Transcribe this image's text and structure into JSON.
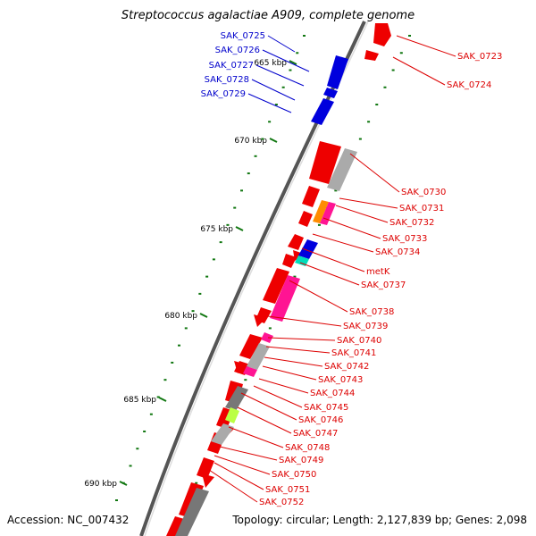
{
  "title": "Streptococcus agalactiae A909, complete genome",
  "footer": {
    "accession": "Accession: NC_007432",
    "summary": "Topology: circular; Length: 2,127,839 bp; Genes: 2,098"
  },
  "ticks": [
    "665 kbp",
    "670 kbp",
    "675 kbp",
    "680 kbp",
    "685 kbp",
    "690 kbp"
  ],
  "colors": {
    "backbone": "#555555",
    "forward_gene": "#0000dd",
    "reverse_gene": "#ee0000",
    "tick": "#117711",
    "label_forward": "#0000cc",
    "label_reverse": "#dd0000",
    "orange_feature": "#ff8c00",
    "magenta_feature": "#ff1493",
    "cyan_feature": "#00ddbb",
    "lime_feature": "#bbff44",
    "grey_feature": "#aaaaaa",
    "dark_grey_feature": "#777777"
  },
  "labels_forward": [
    "SAK_0725",
    "SAK_0726",
    "SAK_0727",
    "SAK_0728",
    "SAK_0729"
  ],
  "labels_reverse": [
    "SAK_0723",
    "SAK_0724",
    "SAK_0730",
    "SAK_0731",
    "SAK_0732",
    "SAK_0733",
    "SAK_0734",
    "metK",
    "SAK_0737",
    "SAK_0738",
    "SAK_0739",
    "SAK_0740",
    "SAK_0741",
    "SAK_0742",
    "SAK_0743",
    "SAK_0744",
    "SAK_0745",
    "SAK_0746",
    "SAK_0747",
    "SAK_0748",
    "SAK_0749",
    "SAK_0750",
    "SAK_0751",
    "SAK_0752"
  ]
}
